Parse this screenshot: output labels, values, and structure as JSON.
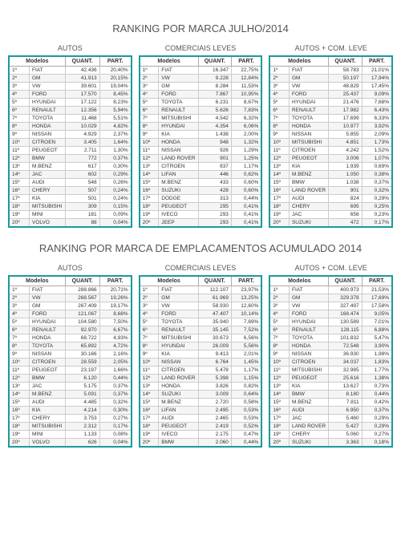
{
  "titles": {
    "section1": "RANKING POR MARCA JULHO/2014",
    "section2": "RANKING POR MARCA DE EMPLACAMENTOS ACUMULADO 2014"
  },
  "captions": {
    "autos": "AUTOS",
    "comerciais": "COMERCIAIS LEVES",
    "autoscom": "AUTOS + COM. LEVE"
  },
  "headers": {
    "modelos": "Modelos",
    "quant": "QUANT.",
    "part": "PART."
  },
  "section1": {
    "autos": [
      {
        "rank": "1º",
        "model": "FIAT",
        "quant": "42.436",
        "part": "20,40%"
      },
      {
        "rank": "2º",
        "model": "GM",
        "quant": "41.913",
        "part": "20,15%"
      },
      {
        "rank": "3º",
        "model": "VW",
        "quant": "39.601",
        "part": "19,04%"
      },
      {
        "rank": "4º",
        "model": "FORD",
        "quant": "17.570",
        "part": "8,45%"
      },
      {
        "rank": "5º",
        "model": "HYUNDAI",
        "quant": "17.122",
        "part": "8,23%"
      },
      {
        "rank": "6º",
        "model": "RENAULT",
        "quant": "12.356",
        "part": "5,94%"
      },
      {
        "rank": "7º",
        "model": "TOYOTA",
        "quant": "11.468",
        "part": "5,51%"
      },
      {
        "rank": "8º",
        "model": "HONDA",
        "quant": "10.029",
        "part": "4,82%"
      },
      {
        "rank": "9º",
        "model": "NISSAN",
        "quant": "4.929",
        "part": "2,37%"
      },
      {
        "rank": "10º",
        "model": "CITROEN",
        "quant": "3.405",
        "part": "1,64%"
      },
      {
        "rank": "11º",
        "model": "PEUGEOT",
        "quant": "2.711",
        "part": "1,30%"
      },
      {
        "rank": "12º",
        "model": "BMW",
        "quant": "772",
        "part": "0,37%"
      },
      {
        "rank": "13º",
        "model": "M.BENZ",
        "quant": "617",
        "part": "0,30%"
      },
      {
        "rank": "14º",
        "model": "JAC",
        "quant": "602",
        "part": "0,29%"
      },
      {
        "rank": "15º",
        "model": "AUDI",
        "quant": "548",
        "part": "0,26%"
      },
      {
        "rank": "16º",
        "model": "CHERY",
        "quant": "507",
        "part": "0,24%"
      },
      {
        "rank": "17º",
        "model": "KIA",
        "quant": "501",
        "part": "0,24%"
      },
      {
        "rank": "18º",
        "model": "MITSUBISHI",
        "quant": "309",
        "part": "0,15%"
      },
      {
        "rank": "19º",
        "model": "MINI",
        "quant": "181",
        "part": "0,09%"
      },
      {
        "rank": "20º",
        "model": "VOLVO",
        "quant": "88",
        "part": "0,04%"
      }
    ],
    "comerciais": [
      {
        "rank": "1º",
        "model": "FIAT",
        "quant": "16.347",
        "part": "22,75%"
      },
      {
        "rank": "2º",
        "model": "VW",
        "quant": "9.228",
        "part": "12,84%"
      },
      {
        "rank": "3º",
        "model": "GM",
        "quant": "8.284",
        "part": "11,53%"
      },
      {
        "rank": "4º",
        "model": "FORD",
        "quant": "7.867",
        "part": "10,95%"
      },
      {
        "rank": "5º",
        "model": "TOYOTA",
        "quant": "6.231",
        "part": "8,67%"
      },
      {
        "rank": "6º",
        "model": "RENAULT",
        "quant": "5.626",
        "part": "7,83%"
      },
      {
        "rank": "7º",
        "model": "MITSUBISHI",
        "quant": "4.542",
        "part": "6,32%"
      },
      {
        "rank": "8º",
        "model": "HYUNDAI",
        "quant": "4.354",
        "part": "6,06%"
      },
      {
        "rank": "9º",
        "model": "KIA",
        "quant": "1.438",
        "part": "2,00%"
      },
      {
        "rank": "10º",
        "model": "HONDA",
        "quant": "948",
        "part": "1,32%"
      },
      {
        "rank": "11º",
        "model": "NISSAN",
        "quant": "926",
        "part": "1,29%"
      },
      {
        "rank": "12º",
        "model": "LAND ROVER",
        "quant": "901",
        "part": "1,25%"
      },
      {
        "rank": "13º",
        "model": "CITROEN",
        "quant": "837",
        "part": "1,17%"
      },
      {
        "rank": "14º",
        "model": "LIFAN",
        "quant": "446",
        "part": "0,62%"
      },
      {
        "rank": "15º",
        "model": "M.BENZ",
        "quant": "433",
        "part": "0,60%"
      },
      {
        "rank": "16º",
        "model": "SUZUKI",
        "quant": "428",
        "part": "0,60%"
      },
      {
        "rank": "17º",
        "model": "DODGE",
        "quant": "313",
        "part": "0,44%"
      },
      {
        "rank": "18º",
        "model": "PEUGEOT",
        "quant": "295",
        "part": "0,41%"
      },
      {
        "rank": "19º",
        "model": "IVECO",
        "quant": "293",
        "part": "0,41%"
      },
      {
        "rank": "20º",
        "model": "JEEP",
        "quant": "293",
        "part": "0,41%"
      }
    ],
    "autoscom": [
      {
        "rank": "1º",
        "model": "FIAT",
        "quant": "58.783",
        "part": "21,01%"
      },
      {
        "rank": "2º",
        "model": "GM",
        "quant": "50.197",
        "part": "17,94%"
      },
      {
        "rank": "3º",
        "model": "VW",
        "quant": "48.829",
        "part": "17,45%"
      },
      {
        "rank": "4º",
        "model": "FORD",
        "quant": "25.437",
        "part": "9,09%"
      },
      {
        "rank": "5º",
        "model": "HYUNDAI",
        "quant": "21.476",
        "part": "7,68%"
      },
      {
        "rank": "6º",
        "model": "RENAULT",
        "quant": "17.982",
        "part": "6,43%"
      },
      {
        "rank": "7º",
        "model": "TOYOTA",
        "quant": "17.699",
        "part": "6,33%"
      },
      {
        "rank": "8º",
        "model": "HONDA",
        "quant": "10.977",
        "part": "3,92%"
      },
      {
        "rank": "9º",
        "model": "NISSAN",
        "quant": "5.855",
        "part": "2,09%"
      },
      {
        "rank": "10º",
        "model": "MITSUBISHI",
        "quant": "4.851",
        "part": "1,73%"
      },
      {
        "rank": "11º",
        "model": "CITROEN",
        "quant": "4.242",
        "part": "1,52%"
      },
      {
        "rank": "12º",
        "model": "PEUGEOT",
        "quant": "3.006",
        "part": "1,07%"
      },
      {
        "rank": "13º",
        "model": "KIA",
        "quant": "1.939",
        "part": "0,69%"
      },
      {
        "rank": "14º",
        "model": "M.BENZ",
        "quant": "1.050",
        "part": "0,38%"
      },
      {
        "rank": "15º",
        "model": "BMW",
        "quant": "1.038",
        "part": "0,37%"
      },
      {
        "rank": "16º",
        "model": "LAND ROVER",
        "quant": "901",
        "part": "0,32%"
      },
      {
        "rank": "17º",
        "model": "AUDI",
        "quant": "824",
        "part": "0,29%"
      },
      {
        "rank": "18º",
        "model": "CHERY",
        "quant": "695",
        "part": "0,25%"
      },
      {
        "rank": "19º",
        "model": "JAC",
        "quant": "656",
        "part": "0,23%"
      },
      {
        "rank": "20º",
        "model": "SUZUKI",
        "quant": "472",
        "part": "0,17%"
      }
    ]
  },
  "section2": {
    "autos": [
      {
        "rank": "1º",
        "model": "FIAT",
        "quant": "288.866",
        "part": "20,71%"
      },
      {
        "rank": "2º",
        "model": "VW",
        "quant": "268.567",
        "part": "19,26%"
      },
      {
        "rank": "3º",
        "model": "GM",
        "quant": "267.409",
        "part": "19,17%"
      },
      {
        "rank": "4º",
        "model": "FORD",
        "quant": "121.067",
        "part": "8,68%"
      },
      {
        "rank": "5º",
        "model": "HYUNDAI",
        "quant": "104.580",
        "part": "7,50%"
      },
      {
        "rank": "6º",
        "model": "RENAULT",
        "quant": "92.970",
        "part": "6,67%"
      },
      {
        "rank": "7º",
        "model": "HONDA",
        "quant": "68.722",
        "part": "4,93%"
      },
      {
        "rank": "8º",
        "model": "TOYOTA",
        "quant": "65.892",
        "part": "4,72%"
      },
      {
        "rank": "9º",
        "model": "NISSAN",
        "quant": "30.166",
        "part": "2,16%"
      },
      {
        "rank": "10º",
        "model": "CITROEN",
        "quant": "28.559",
        "part": "2,05%"
      },
      {
        "rank": "11º",
        "model": "PEUGEOT",
        "quant": "23.197",
        "part": "1,66%"
      },
      {
        "rank": "12º",
        "model": "BMW",
        "quant": "6.120",
        "part": "0,44%"
      },
      {
        "rank": "13º",
        "model": "JAC",
        "quant": "5.175",
        "part": "0,37%"
      },
      {
        "rank": "14º",
        "model": "M.BENZ",
        "quant": "5.091",
        "part": "0,37%"
      },
      {
        "rank": "15º",
        "model": "AUDI",
        "quant": "4.485",
        "part": "0,32%"
      },
      {
        "rank": "16º",
        "model": "KIA",
        "quant": "4.214",
        "part": "0,30%"
      },
      {
        "rank": "17º",
        "model": "CHERY",
        "quant": "3.753",
        "part": "0,27%"
      },
      {
        "rank": "18º",
        "model": "MITSUBISHI",
        "quant": "2.312",
        "part": "0,17%"
      },
      {
        "rank": "19º",
        "model": "MINI",
        "quant": "1.133",
        "part": "0,08%"
      },
      {
        "rank": "20º",
        "model": "VOLVO",
        "quant": "626",
        "part": "0,04%"
      }
    ],
    "comerciais": [
      {
        "rank": "1º",
        "model": "FIAT",
        "quant": "112.107",
        "part": "23,97%"
      },
      {
        "rank": "2º",
        "model": "GM",
        "quant": "61.969",
        "part": "13,25%"
      },
      {
        "rank": "3º",
        "model": "VW",
        "quant": "58.930",
        "part": "12,60%"
      },
      {
        "rank": "4º",
        "model": "FORD",
        "quant": "47.407",
        "part": "10,14%"
      },
      {
        "rank": "5º",
        "model": "TOYOTA",
        "quant": "35.940",
        "part": "7,69%"
      },
      {
        "rank": "6º",
        "model": "RENAULT",
        "quant": "35.145",
        "part": "7,52%"
      },
      {
        "rank": "7º",
        "model": "MITSUBISHI",
        "quant": "30.673",
        "part": "6,56%"
      },
      {
        "rank": "8º",
        "model": "HYUNDAI",
        "quant": "26.009",
        "part": "5,56%"
      },
      {
        "rank": "9º",
        "model": "KIA",
        "quant": "9.413",
        "part": "2,01%"
      },
      {
        "rank": "10º",
        "model": "NISSAN",
        "quant": "6.764",
        "part": "1,45%"
      },
      {
        "rank": "11º",
        "model": "CITROEN",
        "quant": "5.478",
        "part": "1,17%"
      },
      {
        "rank": "12º",
        "model": "LAND ROVER",
        "quant": "5.398",
        "part": "1,15%"
      },
      {
        "rank": "13º",
        "model": "HONDA",
        "quant": "3.826",
        "part": "0,82%"
      },
      {
        "rank": "14º",
        "model": "SUZUKI",
        "quant": "3.009",
        "part": "0,64%"
      },
      {
        "rank": "15º",
        "model": "M.BENZ",
        "quant": "2.720",
        "part": "0,58%"
      },
      {
        "rank": "16º",
        "model": "LIFAN",
        "quant": "2.495",
        "part": "0,53%"
      },
      {
        "rank": "17º",
        "model": "AUDI",
        "quant": "2.465",
        "part": "0,53%"
      },
      {
        "rank": "18º",
        "model": "PEUGEOT",
        "quant": "2.419",
        "part": "0,52%"
      },
      {
        "rank": "19º",
        "model": "IVECO",
        "quant": "2.175",
        "part": "0,47%"
      },
      {
        "rank": "20º",
        "model": "BMW",
        "quant": "2.060",
        "part": "0,44%"
      }
    ],
    "autoscom": [
      {
        "rank": "1º",
        "model": "FIAT",
        "quant": "400.973",
        "part": "21,53%"
      },
      {
        "rank": "2º",
        "model": "GM",
        "quant": "329.378",
        "part": "17,69%"
      },
      {
        "rank": "3º",
        "model": "VW",
        "quant": "327.497",
        "part": "17,58%"
      },
      {
        "rank": "4º",
        "model": "FORD",
        "quant": "168.474",
        "part": "9,05%"
      },
      {
        "rank": "5º",
        "model": "HYUNDAI",
        "quant": "130.589",
        "part": "7,01%"
      },
      {
        "rank": "6º",
        "model": "RENAULT",
        "quant": "128.115",
        "part": "6,88%"
      },
      {
        "rank": "7º",
        "model": "TOYOTA",
        "quant": "101.832",
        "part": "5,47%"
      },
      {
        "rank": "8º",
        "model": "HONDA",
        "quant": "72.548",
        "part": "3,90%"
      },
      {
        "rank": "9º",
        "model": "NISSAN",
        "quant": "36.930",
        "part": "1,98%"
      },
      {
        "rank": "10º",
        "model": "CITROEN",
        "quant": "34.037",
        "part": "1,83%"
      },
      {
        "rank": "11º",
        "model": "MITSUBISHI",
        "quant": "32.985",
        "part": "1,77%"
      },
      {
        "rank": "12º",
        "model": "PEUGEOT",
        "quant": "25.616",
        "part": "1,38%"
      },
      {
        "rank": "13º",
        "model": "KIA",
        "quant": "13.627",
        "part": "0,73%"
      },
      {
        "rank": "14º",
        "model": "BMW",
        "quant": "8.180",
        "part": "0,44%"
      },
      {
        "rank": "15º",
        "model": "M.BENZ",
        "quant": "7.811",
        "part": "0,42%"
      },
      {
        "rank": "16º",
        "model": "AUDI",
        "quant": "6.950",
        "part": "0,37%"
      },
      {
        "rank": "17º",
        "model": "JAC",
        "quant": "5.460",
        "part": "0,29%"
      },
      {
        "rank": "18º",
        "model": "LAND ROVER",
        "quant": "5.427",
        "part": "0,29%"
      },
      {
        "rank": "19º",
        "model": "CHERY",
        "quant": "5.060",
        "part": "0,27%"
      },
      {
        "rank": "20º",
        "model": "SUZUKI",
        "quant": "3.363",
        "part": "0,18%"
      }
    ]
  }
}
